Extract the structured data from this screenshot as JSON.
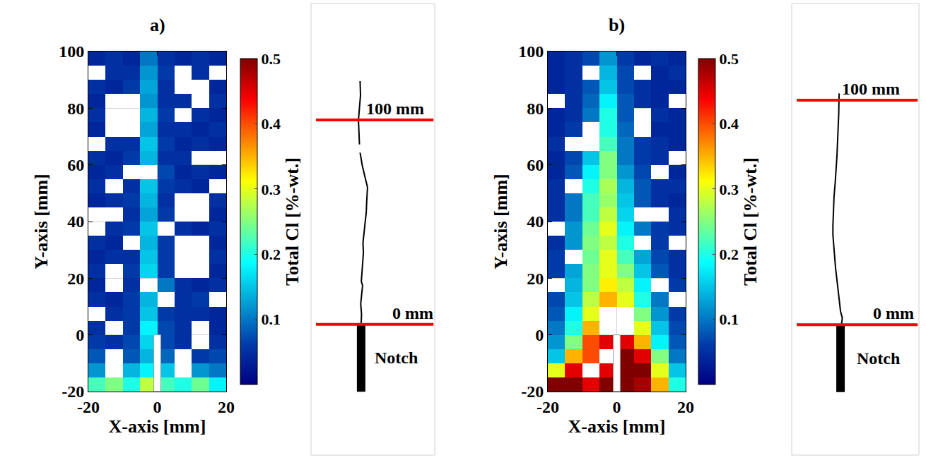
{
  "chart_data": [
    {
      "type": "heatmap",
      "title": "a)",
      "x_label": "X-axis [mm]",
      "y_label": "Y-axis [mm]",
      "xlim": [
        -20,
        20
      ],
      "ylim": [
        -20,
        100
      ],
      "xticks": [
        -20,
        0,
        20
      ],
      "yticks": [
        -20,
        0,
        20,
        40,
        60,
        80,
        100
      ],
      "grid": true,
      "x": [
        -17.5,
        -12.5,
        -7.5,
        -2.5,
        2.5,
        7.5,
        12.5,
        17.5
      ],
      "y": [
        -17.5,
        -12.5,
        -7.5,
        -2.5,
        2.5,
        7.5,
        12.5,
        17.5,
        22.5,
        27.5,
        32.5,
        37.5,
        42.5,
        47.5,
        52.5,
        57.5,
        62.5,
        67.5,
        72.5,
        77.5,
        82.5,
        87.5,
        92.5,
        97.5
      ],
      "z": [
        [
          0.22,
          0.25,
          0.2,
          0.28,
          0.22,
          0.2,
          0.24,
          0.18
        ],
        [
          0.12,
          null,
          0.14,
          0.18,
          0.15,
          null,
          0.12,
          0.1
        ],
        [
          0.08,
          null,
          0.08,
          0.14,
          0.09,
          null,
          0.06,
          0.07
        ],
        [
          0.06,
          0.05,
          0.07,
          0.16,
          0.07,
          0.05,
          null,
          0.05
        ],
        [
          0.05,
          null,
          0.06,
          0.18,
          0.07,
          0.05,
          null,
          0.04
        ],
        [
          null,
          0.05,
          0.06,
          0.15,
          0.06,
          0.05,
          0.05,
          0.04
        ],
        [
          0.05,
          0.04,
          0.06,
          0.14,
          null,
          0.05,
          0.06,
          null
        ],
        [
          0.04,
          null,
          0.05,
          null,
          0.1,
          0.05,
          0.04,
          0.05
        ],
        [
          0.05,
          null,
          0.06,
          0.16,
          0.06,
          null,
          null,
          0.04
        ],
        [
          0.04,
          0.05,
          0.05,
          0.15,
          0.06,
          null,
          null,
          0.05
        ],
        [
          0.05,
          0.04,
          null,
          0.14,
          0.06,
          null,
          null,
          0.04
        ],
        [
          null,
          0.05,
          0.06,
          0.15,
          null,
          0.05,
          0.04,
          0.05
        ],
        [
          null,
          null,
          0.05,
          0.13,
          0.06,
          null,
          null,
          0.04
        ],
        [
          0.04,
          0.05,
          0.06,
          0.14,
          0.05,
          null,
          null,
          0.05
        ],
        [
          0.05,
          null,
          0.05,
          0.15,
          0.06,
          0.05,
          0.04,
          null
        ],
        [
          0.04,
          0.05,
          null,
          null,
          0.07,
          0.04,
          0.05,
          0.04
        ],
        [
          0.05,
          0.04,
          0.06,
          0.14,
          0.05,
          0.05,
          null,
          null
        ],
        [
          null,
          0.05,
          0.05,
          0.15,
          0.06,
          0.04,
          0.05,
          0.04
        ],
        [
          0.04,
          null,
          null,
          0.13,
          0.05,
          0.05,
          0.04,
          0.05
        ],
        [
          0.05,
          null,
          null,
          0.14,
          0.06,
          null,
          0.05,
          0.04
        ],
        [
          0.04,
          null,
          null,
          0.12,
          0.05,
          0.05,
          null,
          0.05
        ],
        [
          0.05,
          0.04,
          0.06,
          0.13,
          0.05,
          null,
          null,
          0.04
        ],
        [
          null,
          0.05,
          0.05,
          0.12,
          0.06,
          null,
          0.05,
          null
        ],
        [
          0.04,
          0.05,
          0.04,
          0.1,
          0.05,
          0.04,
          0.05,
          0.04
        ]
      ],
      "colorbar": {
        "title": "Total Cl [%-wt.]",
        "range": [
          0,
          0.5
        ],
        "ticks": [
          0.1,
          0.2,
          0.3,
          0.4,
          0.5
        ]
      },
      "notch": {
        "x": [
          -1,
          1
        ],
        "y": [
          -20,
          0
        ]
      },
      "crack_image": {
        "xlim": [
          -30,
          30
        ],
        "ylim": [
          -64,
          157
        ],
        "crack_x": [
          -5.7,
          -5.5,
          -5.9,
          -5.4,
          -5.0,
          -5.6,
          -5.3,
          -5.0,
          -4.6,
          -4.8,
          -4.3,
          -3.8,
          -3.2,
          -3.0,
          -2.6,
          -3.8,
          -5.2,
          -6.2,
          null,
          -6.5,
          -6.8,
          -7.0,
          -6.5,
          -6.0,
          -6.2
        ],
        "crack_y": [
          0,
          5,
          10,
          15,
          19,
          21,
          25,
          30,
          35,
          40,
          45,
          50,
          55,
          60,
          67,
          72,
          78,
          84,
          null,
          88,
          93,
          100,
          106,
          112,
          119
        ],
        "notch_x": -5.7,
        "notch_y": [
          -33,
          0
        ],
        "notch_label": "Notch",
        "lines": [
          {
            "y": 100,
            "label": "100 mm"
          },
          {
            "y": 0,
            "label": "0 mm"
          }
        ]
      }
    },
    {
      "type": "heatmap",
      "title": "b)",
      "x_label": "X-axis [mm]",
      "y_label": "Y-axis [mm]",
      "xlim": [
        -20,
        20
      ],
      "ylim": [
        -20,
        100
      ],
      "xticks": [
        -20,
        0,
        20
      ],
      "yticks": [
        -20,
        0,
        20,
        40,
        60,
        80,
        100
      ],
      "grid": true,
      "x": [
        -17.5,
        -12.5,
        -7.5,
        -2.5,
        2.5,
        7.5,
        12.5,
        17.5
      ],
      "y": [
        -17.5,
        -12.5,
        -7.5,
        -2.5,
        2.5,
        7.5,
        12.5,
        17.5,
        22.5,
        27.5,
        32.5,
        37.5,
        42.5,
        47.5,
        52.5,
        57.5,
        62.5,
        67.5,
        72.5,
        77.5,
        82.5,
        87.5,
        92.5,
        97.5
      ],
      "z": [
        [
          0.5,
          0.5,
          0.45,
          0.5,
          0.5,
          0.48,
          0.35,
          0.2
        ],
        [
          0.3,
          0.45,
          null,
          0.45,
          0.5,
          0.5,
          0.3,
          0.15
        ],
        [
          0.15,
          0.35,
          0.4,
          null,
          0.5,
          0.45,
          0.25,
          0.1
        ],
        [
          0.12,
          0.25,
          0.4,
          0.45,
          0.45,
          0.35,
          0.18,
          0.08
        ],
        [
          0.1,
          0.2,
          0.35,
          null,
          null,
          0.3,
          0.15,
          0.07
        ],
        [
          0.08,
          0.18,
          0.3,
          null,
          null,
          0.25,
          0.12,
          0.06
        ],
        [
          0.07,
          0.15,
          0.28,
          0.35,
          0.3,
          0.2,
          0.1,
          null
        ],
        [
          null,
          0.14,
          0.25,
          0.32,
          0.28,
          0.18,
          null,
          0.06
        ],
        [
          0.06,
          0.13,
          0.25,
          0.3,
          0.25,
          0.15,
          0.08,
          0.05
        ],
        [
          0.06,
          null,
          0.24,
          0.3,
          0.22,
          0.13,
          0.07,
          0.05
        ],
        [
          0.05,
          0.12,
          0.25,
          0.28,
          0.2,
          null,
          0.06,
          null
        ],
        [
          null,
          0.12,
          0.24,
          0.3,
          0.18,
          0.1,
          0.06,
          0.05
        ],
        [
          0.05,
          0.1,
          0.22,
          0.28,
          0.16,
          null,
          null,
          0.05
        ],
        [
          0.05,
          0.1,
          0.22,
          0.26,
          0.15,
          0.08,
          0.05,
          0.04
        ],
        [
          0.05,
          null,
          0.2,
          0.27,
          0.14,
          0.08,
          0.05,
          0.05
        ],
        [
          0.04,
          0.08,
          0.18,
          0.25,
          0.12,
          0.07,
          null,
          0.04
        ],
        [
          0.04,
          0.07,
          0.15,
          0.25,
          0.1,
          0.06,
          0.05,
          null
        ],
        [
          0.05,
          null,
          null,
          0.22,
          0.1,
          0.06,
          0.05,
          0.04
        ],
        [
          0.04,
          0.06,
          null,
          0.2,
          0.09,
          null,
          0.04,
          0.04
        ],
        [
          0.04,
          0.05,
          0.1,
          0.2,
          0.08,
          null,
          0.05,
          0.04
        ],
        [
          null,
          0.05,
          0.09,
          0.18,
          0.08,
          0.05,
          0.04,
          null
        ],
        [
          0.04,
          0.05,
          0.08,
          0.15,
          0.07,
          0.05,
          0.04,
          0.04
        ],
        [
          0.04,
          0.05,
          null,
          0.14,
          0.07,
          null,
          0.04,
          0.05
        ],
        [
          0.04,
          0.05,
          0.07,
          0.12,
          0.06,
          0.04,
          0.05,
          0.04
        ]
      ],
      "colorbar": {
        "title": "Total Cl [%-wt.]",
        "range": [
          0,
          0.5
        ],
        "ticks": [
          0.1,
          0.2,
          0.3,
          0.4,
          0.5
        ]
      },
      "notch": {
        "x": [
          -1,
          1
        ],
        "y": [
          -20,
          0
        ]
      },
      "crack_image": {
        "xlim": [
          -28.4,
          28.4
        ],
        "ylim": [
          -58,
          143
        ],
        "crack_x": [
          -6.2,
          -5.8,
          -6.6,
          -7.0,
          -7.6,
          -8.2,
          -8.8,
          -9.2,
          -9.6,
          -10.0,
          -10.0,
          -9.8,
          -9.5,
          -9.0,
          -8.5,
          -8.2,
          -7.9,
          -7.6,
          -7.4,
          -7.3,
          -7.2
        ],
        "crack_y": [
          0,
          3,
          6,
          10,
          15,
          20,
          25,
          30,
          35,
          40,
          44,
          50,
          57,
          63,
          69,
          75,
          82,
          88,
          94,
          100,
          103
        ],
        "notch_x": -6.6,
        "notch_y": [
          -30,
          0
        ],
        "notch_label": "Notch",
        "lines": [
          {
            "y": 100,
            "label": "100 mm"
          },
          {
            "y": 0,
            "label": "0 mm"
          }
        ]
      }
    }
  ]
}
